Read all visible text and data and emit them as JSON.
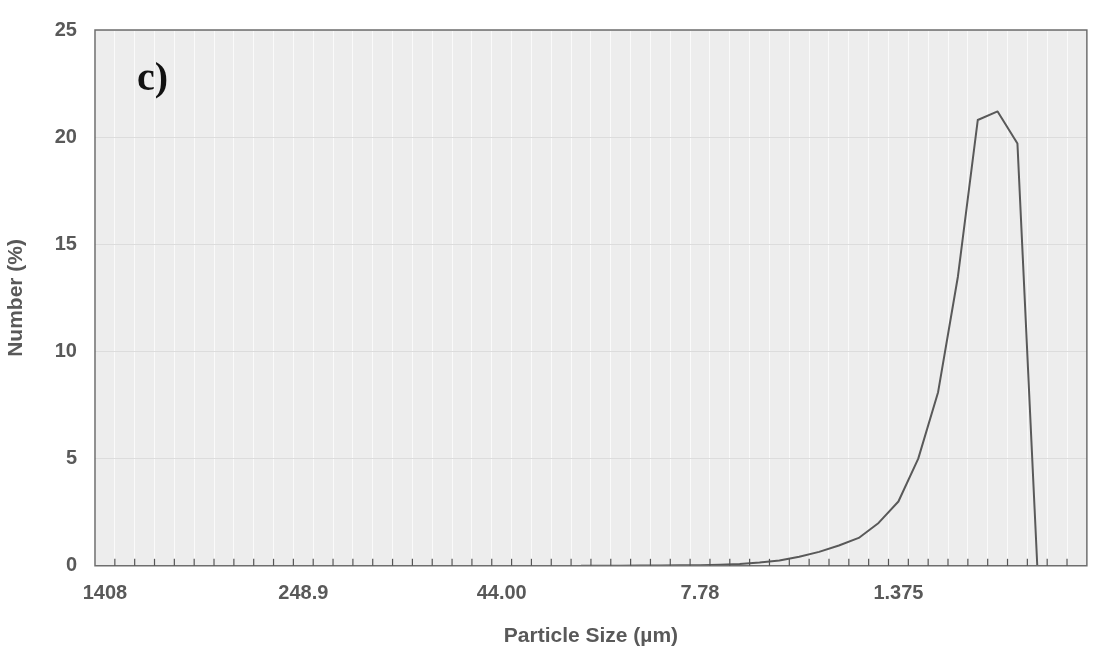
{
  "chart_data": {
    "type": "line",
    "xlabel": "Particle Size (µm)",
    "ylabel": "Number (%)",
    "annotations": [
      "c)"
    ],
    "categories": [
      "1408",
      null,
      null,
      null,
      null,
      null,
      null,
      null,
      null,
      null,
      "248.9",
      null,
      null,
      null,
      null,
      null,
      null,
      null,
      null,
      null,
      "44.00",
      null,
      null,
      null,
      null,
      null,
      null,
      null,
      null,
      null,
      "7.78",
      null,
      null,
      null,
      null,
      null,
      null,
      null,
      null,
      null,
      "1.375",
      null,
      null,
      null,
      null,
      null,
      null,
      null,
      null,
      null
    ],
    "series": [
      {
        "color": "#595959",
        "values": [
          null,
          null,
          null,
          null,
          null,
          null,
          null,
          null,
          null,
          null,
          null,
          null,
          null,
          null,
          null,
          null,
          null,
          null,
          null,
          null,
          null,
          null,
          null,
          null,
          0,
          0,
          0,
          0.01,
          0.01,
          0.02,
          0.03,
          0.05,
          0.08,
          0.15,
          0.25,
          0.42,
          0.65,
          0.95,
          1.3,
          2.0,
          3.0,
          5.0,
          8.1,
          13.5,
          20.8,
          21.2,
          19.7,
          0,
          null,
          null
        ]
      }
    ],
    "ylim": [
      0,
      25
    ],
    "yticks": [
      0,
      5,
      10,
      15,
      20,
      25
    ],
    "grid": true,
    "legend": false,
    "marker": "none",
    "line_style": "solid"
  }
}
